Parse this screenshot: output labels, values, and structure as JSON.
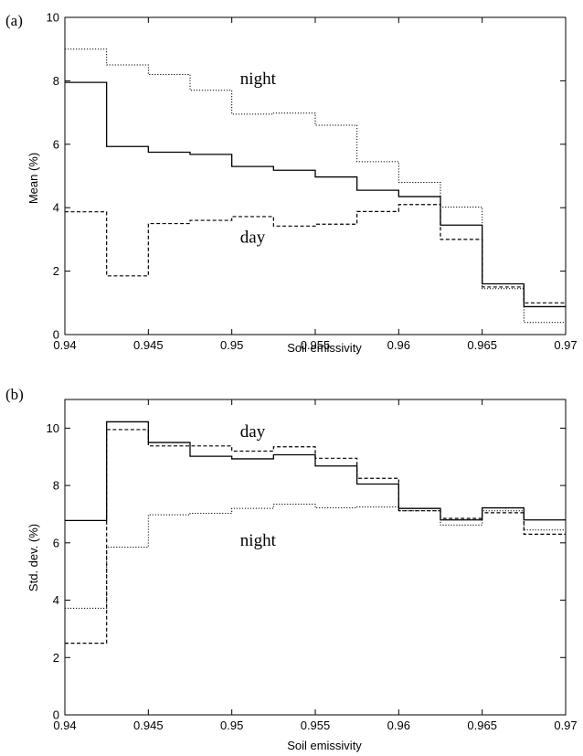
{
  "chart_data": [
    {
      "type": "line",
      "step": true,
      "panel_label": "(a)",
      "xlabel": "Soil emissivity",
      "ylabel": "Mean (%)",
      "xlim": [
        0.94,
        0.97
      ],
      "ylim": [
        0,
        10
      ],
      "x_ticks": [
        "0.94",
        "0.945",
        "0.95",
        "0.955",
        "0.96",
        "0.965",
        "0.97"
      ],
      "y_ticks": [
        "0",
        "2",
        "4",
        "6",
        "8",
        "10"
      ],
      "bin_edges": [
        0.94,
        0.9425,
        0.945,
        0.9475,
        0.95,
        0.9525,
        0.955,
        0.9575,
        0.96,
        0.9625,
        0.965,
        0.9675,
        0.97
      ],
      "series": [
        {
          "values": [
            7.95,
            5.93,
            5.75,
            5.68,
            5.3,
            5.18,
            4.97,
            4.55,
            4.35,
            3.45,
            1.6,
            0.88
          ],
          "line_style": "solid"
        },
        {
          "values": [
            3.87,
            1.85,
            3.5,
            3.6,
            3.72,
            3.42,
            3.48,
            3.88,
            4.1,
            3.0,
            1.5,
            1.0
          ],
          "line_style": "dashed"
        },
        {
          "values": [
            9.0,
            8.5,
            8.2,
            7.7,
            6.95,
            6.98,
            6.6,
            5.45,
            4.8,
            4.02,
            1.45,
            0.38
          ],
          "line_style": "dotted"
        }
      ],
      "annotations": [
        {
          "text": "night",
          "x": 0.9505,
          "y": 7.9
        },
        {
          "text": "day",
          "x": 0.9505,
          "y": 2.9
        }
      ],
      "grid": false
    },
    {
      "type": "line",
      "step": true,
      "panel_label": "(b)",
      "xlabel": "Soil emissivity",
      "ylabel": "Std. dev. (%)",
      "xlim": [
        0.94,
        0.97
      ],
      "ylim": [
        0,
        11
      ],
      "x_ticks": [
        "0.94",
        "0.945",
        "0.95",
        "0.955",
        "0.96",
        "0.965",
        "0.97"
      ],
      "y_ticks": [
        "0",
        "2",
        "4",
        "6",
        "8",
        "10"
      ],
      "bin_edges": [
        0.94,
        0.9425,
        0.945,
        0.9475,
        0.95,
        0.9525,
        0.955,
        0.9575,
        0.96,
        0.9625,
        0.965,
        0.9675,
        0.97
      ],
      "series": [
        {
          "values": [
            6.78,
            10.22,
            9.5,
            9.02,
            8.93,
            9.07,
            8.68,
            8.05,
            7.2,
            6.8,
            7.22,
            6.8
          ],
          "line_style": "solid"
        },
        {
          "values": [
            2.5,
            9.95,
            9.38,
            9.38,
            9.2,
            9.35,
            8.95,
            8.25,
            7.12,
            6.85,
            7.05,
            6.3
          ],
          "line_style": "dashed"
        },
        {
          "values": [
            3.72,
            5.85,
            6.98,
            7.03,
            7.2,
            7.35,
            7.22,
            7.25,
            7.12,
            6.62,
            7.12,
            6.45
          ],
          "line_style": "dotted"
        }
      ],
      "annotations": [
        {
          "text": "day",
          "x": 0.9505,
          "y": 9.7
        },
        {
          "text": "night",
          "x": 0.9505,
          "y": 5.9
        }
      ],
      "grid": false
    }
  ]
}
